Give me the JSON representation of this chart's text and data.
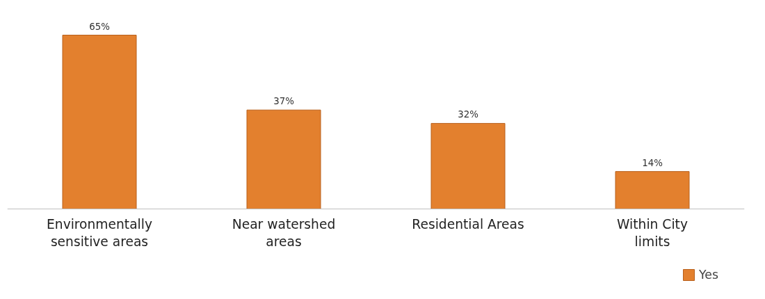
{
  "chart_data": {
    "type": "bar",
    "categories": [
      "Environmentally sensitive areas",
      "Near watershed areas",
      "Residential Areas",
      "Within City limits"
    ],
    "series": [
      {
        "name": "Yes",
        "color": "#e3802e",
        "values": [
          65,
          37,
          32,
          14
        ],
        "value_labels": [
          "65%",
          "37%",
          "32%",
          "14%"
        ]
      }
    ],
    "tick_labels": "x",
    "legend": "bottom right"
  }
}
